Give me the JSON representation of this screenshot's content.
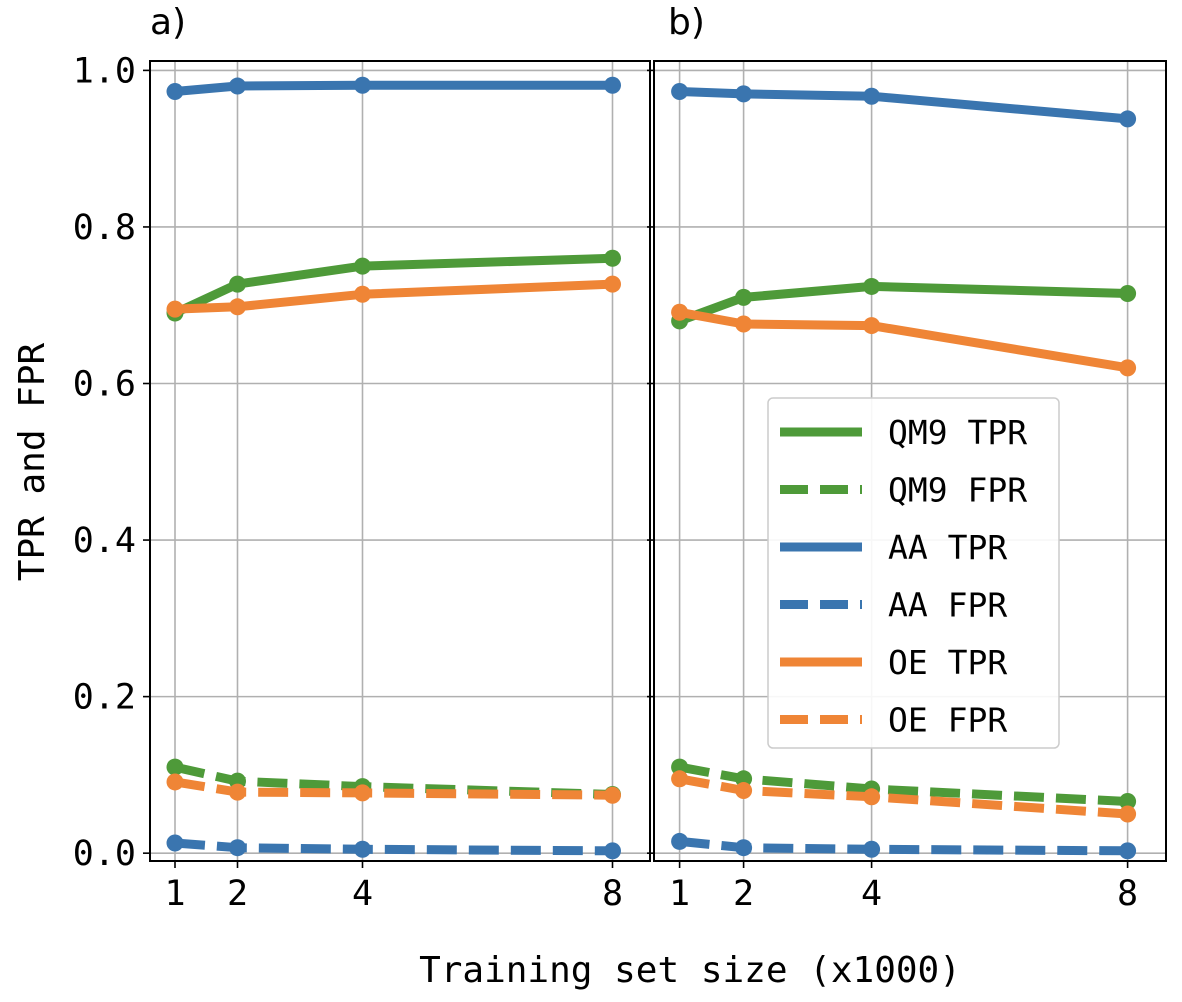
{
  "figure": {
    "xlabel": "Training set size (x1000)",
    "ylabel": "TPR and FPR"
  },
  "chart_data": [
    {
      "type": "line",
      "panel_label": "a)",
      "x": [
        1,
        2,
        4,
        8
      ],
      "xticks": [
        "1",
        "2",
        "4",
        "8"
      ],
      "yticks": [
        "0.0",
        "0.2",
        "0.4",
        "0.6",
        "0.8",
        "1.0"
      ],
      "xlim": [
        0.6,
        8.6
      ],
      "ylim": [
        -0.01,
        1.0
      ],
      "grid": true,
      "series": [
        {
          "name": "QM9 TPR",
          "color": "#4e9a39",
          "dashed": false,
          "values": [
            0.69,
            0.727,
            0.75,
            0.76
          ]
        },
        {
          "name": "QM9 FPR",
          "color": "#4e9a39",
          "dashed": true,
          "values": [
            0.11,
            0.092,
            0.085,
            0.075
          ]
        },
        {
          "name": "AA TPR",
          "color": "#3a75af",
          "dashed": false,
          "values": [
            0.973,
            0.98,
            0.981,
            0.981
          ]
        },
        {
          "name": "AA FPR",
          "color": "#3a75af",
          "dashed": true,
          "values": [
            0.013,
            0.007,
            0.005,
            0.003
          ]
        },
        {
          "name": "OE TPR",
          "color": "#ef8536",
          "dashed": false,
          "values": [
            0.695,
            0.698,
            0.714,
            0.727
          ]
        },
        {
          "name": "OE FPR",
          "color": "#ef8536",
          "dashed": true,
          "values": [
            0.091,
            0.078,
            0.077,
            0.074
          ]
        }
      ]
    },
    {
      "type": "line",
      "panel_label": "b)",
      "x": [
        1,
        2,
        4,
        8
      ],
      "xticks": [
        "1",
        "2",
        "4",
        "8"
      ],
      "yticks": [
        "0.0",
        "0.2",
        "0.4",
        "0.6",
        "0.8",
        "1.0"
      ],
      "xlim": [
        0.6,
        8.6
      ],
      "ylim": [
        -0.01,
        1.0
      ],
      "grid": true,
      "legend_position": "center-right",
      "series": [
        {
          "name": "QM9 TPR",
          "color": "#4e9a39",
          "dashed": false,
          "values": [
            0.68,
            0.71,
            0.724,
            0.715
          ]
        },
        {
          "name": "QM9 FPR",
          "color": "#4e9a39",
          "dashed": true,
          "values": [
            0.11,
            0.095,
            0.082,
            0.066
          ]
        },
        {
          "name": "AA TPR",
          "color": "#3a75af",
          "dashed": false,
          "values": [
            0.973,
            0.97,
            0.967,
            0.938
          ]
        },
        {
          "name": "AA FPR",
          "color": "#3a75af",
          "dashed": true,
          "values": [
            0.015,
            0.007,
            0.005,
            0.003
          ]
        },
        {
          "name": "OE TPR",
          "color": "#ef8536",
          "dashed": false,
          "values": [
            0.691,
            0.676,
            0.674,
            0.62
          ]
        },
        {
          "name": "OE FPR",
          "color": "#ef8536",
          "dashed": true,
          "values": [
            0.095,
            0.08,
            0.072,
            0.05
          ]
        }
      ]
    }
  ]
}
